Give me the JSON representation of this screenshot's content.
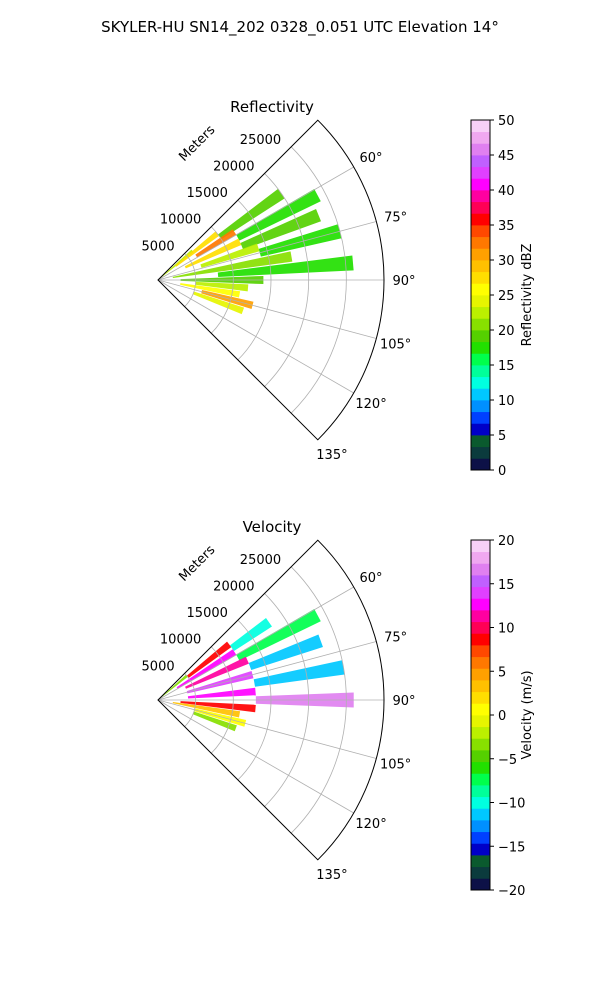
{
  "suptitle": "SKYLER-HU  SN14_202  0328_0.051 UTC Elevation 14°",
  "chart_data": [
    {
      "type": "heatmap",
      "subtype": "polar-sector",
      "title": "Reflectivity",
      "radial_label": "Meters",
      "theta_range_deg": [
        45,
        135
      ],
      "theta_zero": "north",
      "theta_direction": "clockwise",
      "theta_ticks": [
        "60°",
        "75°",
        "90°",
        "105°",
        "120°",
        "135°"
      ],
      "r_range": [
        0,
        30000
      ],
      "r_ticks": [
        5000,
        10000,
        15000,
        20000,
        25000
      ],
      "r_tick_labels": [
        "5000",
        "10000",
        "15000",
        "20000",
        "25000"
      ],
      "grid": true,
      "colorbar": {
        "label": "Reflectivity dBZ",
        "min": 0,
        "max": 50,
        "ticks": [
          0,
          5,
          10,
          15,
          20,
          25,
          30,
          35,
          40,
          45,
          50
        ],
        "tick_labels": [
          "0",
          "5",
          "10",
          "15",
          "20",
          "25",
          "30",
          "35",
          "40",
          "45",
          "50"
        ],
        "palette": [
          "#0d1147",
          "#0b3b3d",
          "#0a5a2e",
          "#0000c8",
          "#0040ff",
          "#0090ff",
          "#00c8ff",
          "#00ffe0",
          "#00ff9a",
          "#00ff4c",
          "#22e000",
          "#55d000",
          "#88e000",
          "#bbf000",
          "#e6f500",
          "#ffff00",
          "#ffde00",
          "#ffc000",
          "#ffa000",
          "#ff7800",
          "#ff4800",
          "#ff0000",
          "#ff0055",
          "#ff00a0",
          "#ff00ff",
          "#e040ff",
          "#c060ff",
          "#e080f0",
          "#f0a8f0",
          "#f8d0f8"
        ]
      },
      "cells": [
        {
          "theta": 50,
          "r0": 0,
          "r1": 6000,
          "value": 22
        },
        {
          "theta": 52,
          "r0": 3000,
          "r1": 10000,
          "value": 27
        },
        {
          "theta": 55,
          "r0": 10000,
          "r1": 20000,
          "value": 19
        },
        {
          "theta": 58,
          "r0": 6000,
          "r1": 12000,
          "value": 33
        },
        {
          "theta": 62,
          "r0": 12000,
          "r1": 24000,
          "value": 18
        },
        {
          "theta": 65,
          "r0": 4000,
          "r1": 12000,
          "value": 28
        },
        {
          "theta": 68,
          "r0": 12000,
          "r1": 23000,
          "value": 19
        },
        {
          "theta": 72,
          "r0": 6000,
          "r1": 14000,
          "value": 23
        },
        {
          "theta": 75,
          "r0": 14000,
          "r1": 25000,
          "value": 18
        },
        {
          "theta": 80,
          "r0": 2000,
          "r1": 18000,
          "value": 20
        },
        {
          "theta": 85,
          "r0": 8000,
          "r1": 26000,
          "value": 18
        },
        {
          "theta": 90,
          "r0": 3000,
          "r1": 14000,
          "value": 19
        },
        {
          "theta": 95,
          "r0": 5000,
          "r1": 12000,
          "value": 22
        },
        {
          "theta": 100,
          "r0": 3000,
          "r1": 11000,
          "value": 25
        },
        {
          "theta": 105,
          "r0": 6000,
          "r1": 13000,
          "value": 30
        },
        {
          "theta": 110,
          "r0": 5000,
          "r1": 12000,
          "value": 24
        }
      ]
    },
    {
      "type": "heatmap",
      "subtype": "polar-sector",
      "title": "Velocity",
      "radial_label": "Meters",
      "theta_range_deg": [
        45,
        135
      ],
      "theta_zero": "north",
      "theta_direction": "clockwise",
      "theta_ticks": [
        "60°",
        "75°",
        "90°",
        "105°",
        "120°",
        "135°"
      ],
      "r_range": [
        0,
        30000
      ],
      "r_ticks": [
        5000,
        10000,
        15000,
        20000,
        25000
      ],
      "r_tick_labels": [
        "5000",
        "10000",
        "15000",
        "20000",
        "25000"
      ],
      "grid": true,
      "colorbar": {
        "label": "Velocity (m/s)",
        "min": -20,
        "max": 20,
        "ticks": [
          -20,
          -15,
          -10,
          -5,
          0,
          5,
          10,
          15,
          20
        ],
        "tick_labels": [
          "−20",
          "−15",
          "−10",
          "−5",
          "0",
          "5",
          "10",
          "15",
          "20"
        ],
        "palette": [
          "#0d1147",
          "#0b3b3d",
          "#0a5a2e",
          "#0000c8",
          "#0040ff",
          "#0090ff",
          "#00c8ff",
          "#00ffe0",
          "#00ff9a",
          "#00ff4c",
          "#22e000",
          "#55d000",
          "#88e000",
          "#bbf000",
          "#e6f500",
          "#ffff00",
          "#ffde00",
          "#ffc000",
          "#ffa000",
          "#ff7800",
          "#ff4800",
          "#ff0000",
          "#ff0055",
          "#ff00a0",
          "#ff00ff",
          "#e040ff",
          "#c060ff",
          "#e080f0",
          "#f0a8f0",
          "#f8d0f8"
        ]
      },
      "cells": [
        {
          "theta": 50,
          "r0": 0,
          "r1": 5000,
          "value": -3
        },
        {
          "theta": 52,
          "r0": 5000,
          "r1": 12000,
          "value": 8
        },
        {
          "theta": 55,
          "r0": 12000,
          "r1": 18000,
          "value": -10
        },
        {
          "theta": 58,
          "r0": 3000,
          "r1": 12000,
          "value": 12
        },
        {
          "theta": 62,
          "r0": 12000,
          "r1": 24000,
          "value": -8
        },
        {
          "theta": 66,
          "r0": 4000,
          "r1": 13000,
          "value": 11
        },
        {
          "theta": 70,
          "r0": 13000,
          "r1": 23000,
          "value": -11
        },
        {
          "theta": 75,
          "r0": 4000,
          "r1": 13000,
          "value": 14
        },
        {
          "theta": 80,
          "r0": 13000,
          "r1": 25000,
          "value": -12
        },
        {
          "theta": 85,
          "r0": 4000,
          "r1": 13000,
          "value": 12
        },
        {
          "theta": 90,
          "r0": 13000,
          "r1": 26000,
          "value": 16
        },
        {
          "theta": 95,
          "r0": 3000,
          "r1": 13000,
          "value": 9
        },
        {
          "theta": 100,
          "r0": 2000,
          "r1": 11000,
          "value": 3
        },
        {
          "theta": 105,
          "r0": 5000,
          "r1": 12000,
          "value": 1
        },
        {
          "theta": 110,
          "r0": 5000,
          "r1": 11000,
          "value": -4
        }
      ]
    }
  ]
}
